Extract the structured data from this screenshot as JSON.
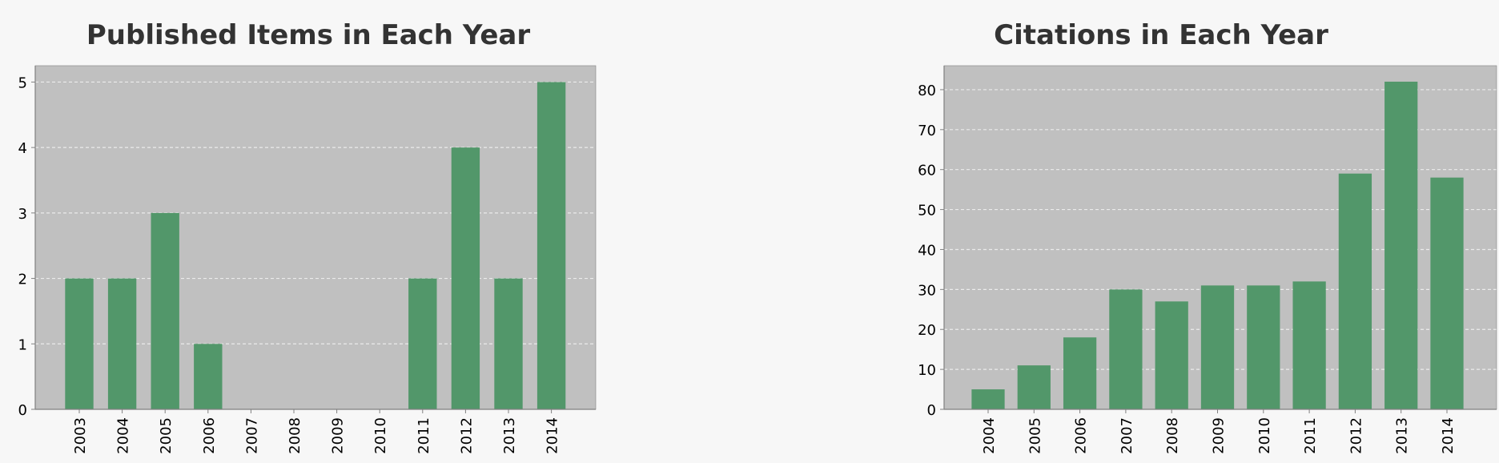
{
  "colors": {
    "bar": "#52976a",
    "plot_background": "#c0c0c0",
    "gridline": "#ebebeb",
    "axis": "#808080",
    "page_background": "#f7f7f7",
    "title": "#333333"
  },
  "chart_data": [
    {
      "type": "bar",
      "title": "Published Items in Each Year",
      "xlabel": "",
      "ylabel": "",
      "categories": [
        "2003",
        "2004",
        "2005",
        "2006",
        "2007",
        "2008",
        "2009",
        "2010",
        "2011",
        "2012",
        "2013",
        "2014"
      ],
      "values": [
        2,
        2,
        3,
        1,
        0,
        0,
        0,
        0,
        2,
        4,
        2,
        5
      ],
      "ylim": [
        0,
        5.25
      ],
      "yticks": [
        0,
        1,
        2,
        3,
        4,
        5
      ],
      "grid": true,
      "legend": "none"
    },
    {
      "type": "bar",
      "title": "Citations in Each Year",
      "xlabel": "",
      "ylabel": "",
      "categories": [
        "2004",
        "2005",
        "2006",
        "2007",
        "2008",
        "2009",
        "2010",
        "2011",
        "2012",
        "2013",
        "2014"
      ],
      "values": [
        5,
        11,
        18,
        30,
        27,
        31,
        31,
        32,
        59,
        82,
        58
      ],
      "ylim": [
        0,
        86
      ],
      "yticks": [
        0,
        10,
        20,
        30,
        40,
        50,
        60,
        70,
        80
      ],
      "grid": true,
      "legend": "none"
    }
  ]
}
